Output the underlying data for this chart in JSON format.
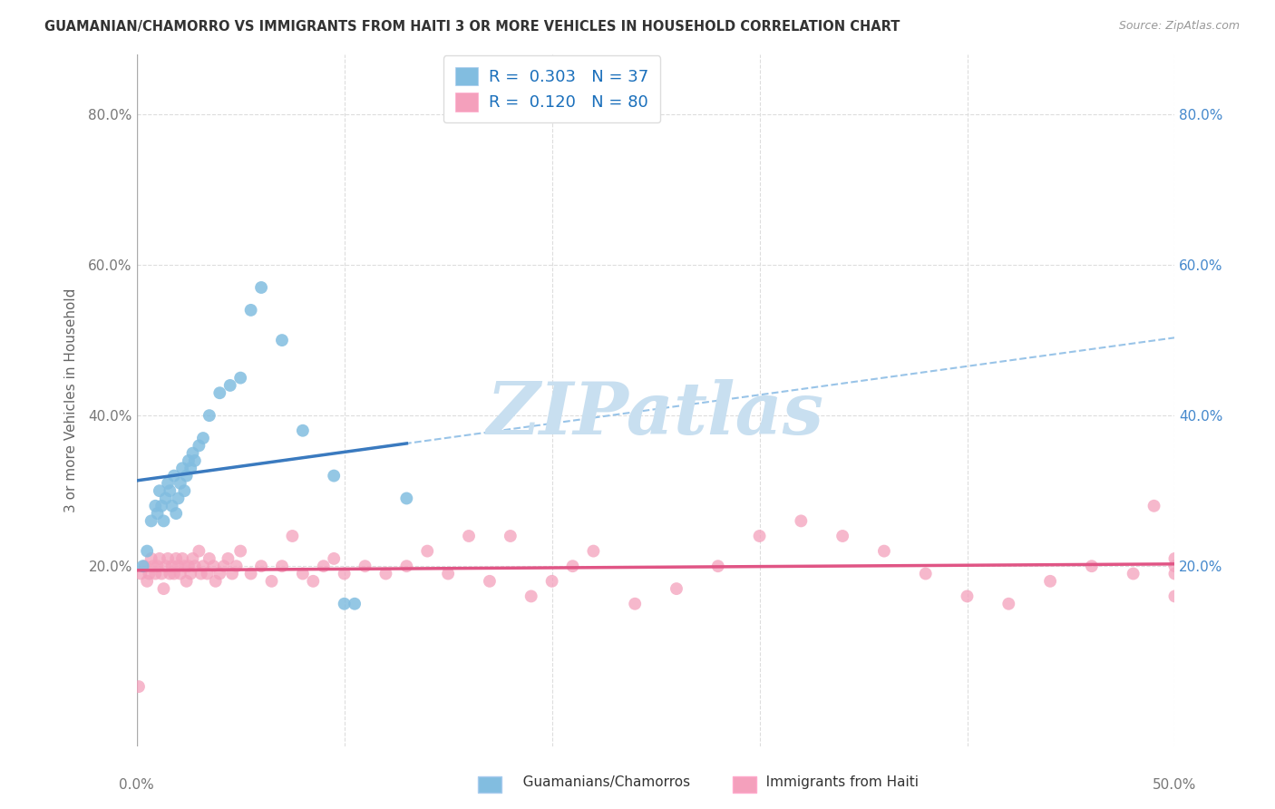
{
  "title": "GUAMANIAN/CHAMORRO VS IMMIGRANTS FROM HAITI 3 OR MORE VEHICLES IN HOUSEHOLD CORRELATION CHART",
  "source": "Source: ZipAtlas.com",
  "ylabel": "3 or more Vehicles in Household",
  "y_ticks": [
    0.0,
    0.2,
    0.4,
    0.6,
    0.8
  ],
  "y_tick_labels_left": [
    "",
    "20.0%",
    "40.0%",
    "60.0%",
    "80.0%"
  ],
  "y_tick_labels_right": [
    "",
    "20.0%",
    "40.0%",
    "60.0%",
    "80.0%"
  ],
  "x_range": [
    0.0,
    0.5
  ],
  "y_range": [
    -0.04,
    0.88
  ],
  "legend_label_1": "Guamanians/Chamorros",
  "legend_label_2": "Immigrants from Haiti",
  "R1": 0.303,
  "N1": 37,
  "R2": 0.12,
  "N2": 80,
  "color_blue": "#82bde0",
  "color_pink": "#f4a0bc",
  "color_line_blue": "#3a7abf",
  "color_line_pink": "#e05585",
  "color_trendline_dashed": "#99c4e8",
  "blue_scatter_x": [
    0.003,
    0.005,
    0.007,
    0.009,
    0.01,
    0.011,
    0.012,
    0.013,
    0.014,
    0.015,
    0.016,
    0.017,
    0.018,
    0.019,
    0.02,
    0.021,
    0.022,
    0.023,
    0.024,
    0.025,
    0.026,
    0.027,
    0.028,
    0.03,
    0.032,
    0.035,
    0.04,
    0.045,
    0.05,
    0.055,
    0.06,
    0.07,
    0.08,
    0.095,
    0.1,
    0.105,
    0.13
  ],
  "blue_scatter_y": [
    0.2,
    0.22,
    0.26,
    0.28,
    0.27,
    0.3,
    0.28,
    0.26,
    0.29,
    0.31,
    0.3,
    0.28,
    0.32,
    0.27,
    0.29,
    0.31,
    0.33,
    0.3,
    0.32,
    0.34,
    0.33,
    0.35,
    0.34,
    0.36,
    0.37,
    0.4,
    0.43,
    0.44,
    0.45,
    0.54,
    0.57,
    0.5,
    0.38,
    0.32,
    0.15,
    0.15,
    0.29
  ],
  "pink_scatter_x": [
    0.001,
    0.002,
    0.004,
    0.005,
    0.006,
    0.007,
    0.008,
    0.009,
    0.01,
    0.011,
    0.012,
    0.013,
    0.014,
    0.015,
    0.016,
    0.017,
    0.018,
    0.019,
    0.02,
    0.021,
    0.022,
    0.023,
    0.024,
    0.025,
    0.026,
    0.027,
    0.028,
    0.03,
    0.031,
    0.032,
    0.034,
    0.035,
    0.037,
    0.038,
    0.04,
    0.042,
    0.044,
    0.046,
    0.048,
    0.05,
    0.055,
    0.06,
    0.065,
    0.07,
    0.075,
    0.08,
    0.085,
    0.09,
    0.095,
    0.1,
    0.11,
    0.12,
    0.13,
    0.14,
    0.15,
    0.16,
    0.17,
    0.18,
    0.19,
    0.2,
    0.21,
    0.22,
    0.24,
    0.26,
    0.28,
    0.3,
    0.32,
    0.34,
    0.36,
    0.38,
    0.4,
    0.42,
    0.44,
    0.46,
    0.48,
    0.49,
    0.5,
    0.5,
    0.5,
    0.5
  ],
  "pink_scatter_y": [
    0.04,
    0.19,
    0.2,
    0.18,
    0.19,
    0.21,
    0.2,
    0.19,
    0.2,
    0.21,
    0.19,
    0.17,
    0.2,
    0.21,
    0.19,
    0.2,
    0.19,
    0.21,
    0.2,
    0.19,
    0.21,
    0.2,
    0.18,
    0.2,
    0.19,
    0.21,
    0.2,
    0.22,
    0.19,
    0.2,
    0.19,
    0.21,
    0.2,
    0.18,
    0.19,
    0.2,
    0.21,
    0.19,
    0.2,
    0.22,
    0.19,
    0.2,
    0.18,
    0.2,
    0.24,
    0.19,
    0.18,
    0.2,
    0.21,
    0.19,
    0.2,
    0.19,
    0.2,
    0.22,
    0.19,
    0.24,
    0.18,
    0.24,
    0.16,
    0.18,
    0.2,
    0.22,
    0.15,
    0.17,
    0.2,
    0.24,
    0.26,
    0.24,
    0.22,
    0.19,
    0.16,
    0.15,
    0.18,
    0.2,
    0.19,
    0.28,
    0.2,
    0.16,
    0.21,
    0.19
  ],
  "watermark": "ZIPatlas",
  "watermark_color": "#c8dff0",
  "grid_color": "#dddddd",
  "spine_color": "#cccccc"
}
